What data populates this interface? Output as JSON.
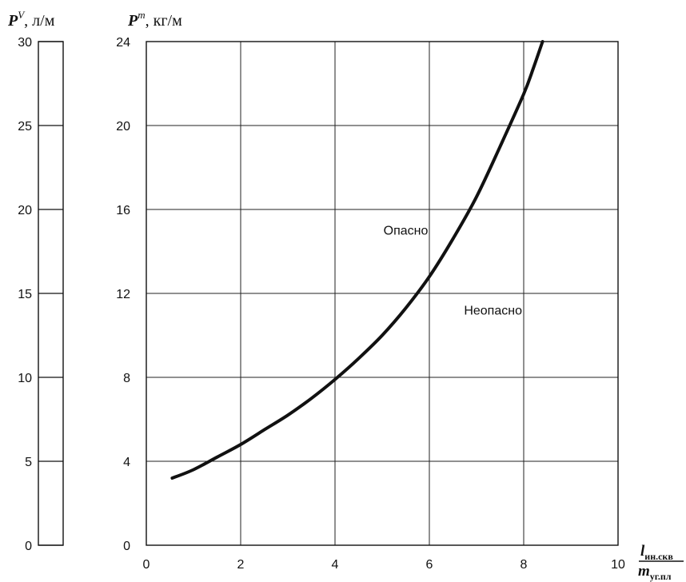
{
  "chart_data": [
    {
      "type": "scale",
      "axis": {
        "label_symbol": "P",
        "label_sup": "V",
        "label_unit": ", л/м",
        "ylim": [
          0,
          30
        ],
        "ticks": [
          0,
          5,
          10,
          15,
          20,
          25,
          30
        ],
        "tick_labels": [
          "0",
          "5",
          "10",
          "15",
          "20",
          "25",
          "30"
        ]
      }
    },
    {
      "type": "line",
      "xlim": [
        0,
        10
      ],
      "ylim": [
        0,
        24
      ],
      "xticks": [
        0,
        2,
        4,
        6,
        8,
        10
      ],
      "xtick_labels": [
        "0",
        "2",
        "4",
        "6",
        "8",
        "10"
      ],
      "yticks": [
        0,
        4,
        8,
        12,
        16,
        20,
        24
      ],
      "ytick_labels": [
        "0",
        "4",
        "8",
        "12",
        "16",
        "20",
        "24"
      ],
      "ylabel": {
        "symbol": "P",
        "sup": "m",
        "unit": ", кг/м"
      },
      "xlabel": {
        "numerator": "l",
        "numerator_sub": "ин.скв",
        "denominator": "m",
        "denominator_sub": "уг.пл"
      },
      "grid": true,
      "series": [
        {
          "x": [
            0.55,
            1.0,
            1.5,
            2.0,
            2.5,
            3.0,
            3.5,
            4.0,
            4.5,
            5.0,
            5.5,
            6.0,
            6.5,
            7.0,
            7.5,
            8.0,
            8.2,
            8.4
          ],
          "y": [
            3.2,
            3.6,
            4.2,
            4.8,
            5.5,
            6.2,
            7.0,
            7.9,
            8.9,
            10.0,
            11.3,
            12.8,
            14.6,
            16.6,
            19.0,
            21.5,
            22.7,
            24.0
          ]
        }
      ],
      "annotations": [
        {
          "text": "Опасно",
          "x": 5.5,
          "y": 14.8
        },
        {
          "text": "Неопасно",
          "x": 7.35,
          "y": 11.0
        }
      ]
    }
  ]
}
